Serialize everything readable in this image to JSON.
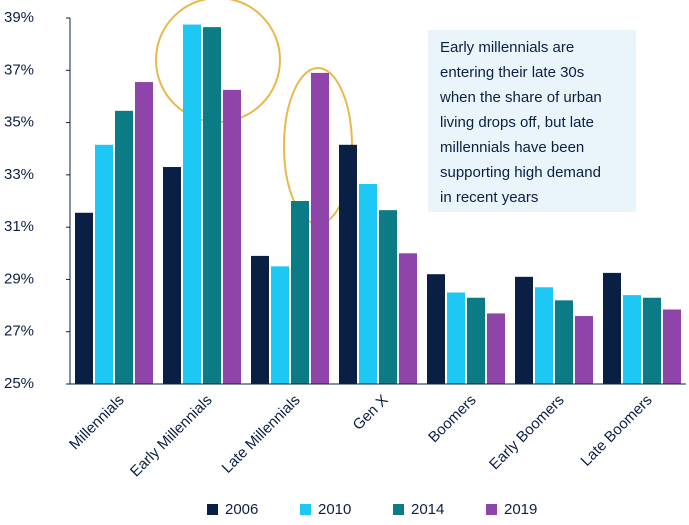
{
  "chart_data": {
    "type": "bar",
    "categories": [
      "Millennials",
      "Early Millennials",
      "Late Millennials",
      "Gen X",
      "Boomers",
      "Early Boomers",
      "Late Boomers"
    ],
    "series": [
      {
        "name": "2006",
        "color": "#0a1f44",
        "values": [
          31.55,
          33.3,
          29.9,
          34.15,
          29.2,
          29.1,
          29.25
        ]
      },
      {
        "name": "2010",
        "color": "#1ec8f5",
        "values": [
          34.15,
          38.75,
          29.5,
          32.65,
          28.5,
          28.7,
          28.4
        ]
      },
      {
        "name": "2014",
        "color": "#0b7b85",
        "values": [
          35.45,
          38.65,
          32.0,
          31.65,
          28.3,
          28.2,
          28.3
        ]
      },
      {
        "name": "2019",
        "color": "#8e44a8",
        "values": [
          36.55,
          36.25,
          36.9,
          30.0,
          27.7,
          27.6,
          27.85
        ]
      }
    ],
    "ylim": [
      25,
      39
    ],
    "yticks": [
      {
        "value": 25,
        "label": "25%"
      },
      {
        "value": 27,
        "label": "27%"
      },
      {
        "value": 29,
        "label": "29%"
      },
      {
        "value": 31,
        "label": "31%"
      },
      {
        "value": 33,
        "label": "33%"
      },
      {
        "value": 35,
        "label": "35%"
      },
      {
        "value": 37,
        "label": "37%"
      },
      {
        "value": 39,
        "label": "39%"
      }
    ],
    "annotation_lines": [
      "Early millennials are",
      "entering their late 30s",
      "when the share of urban",
      "living drops off, but late",
      "millennials have been",
      "supporting high demand",
      "in recent years"
    ],
    "legend": "bottom"
  }
}
